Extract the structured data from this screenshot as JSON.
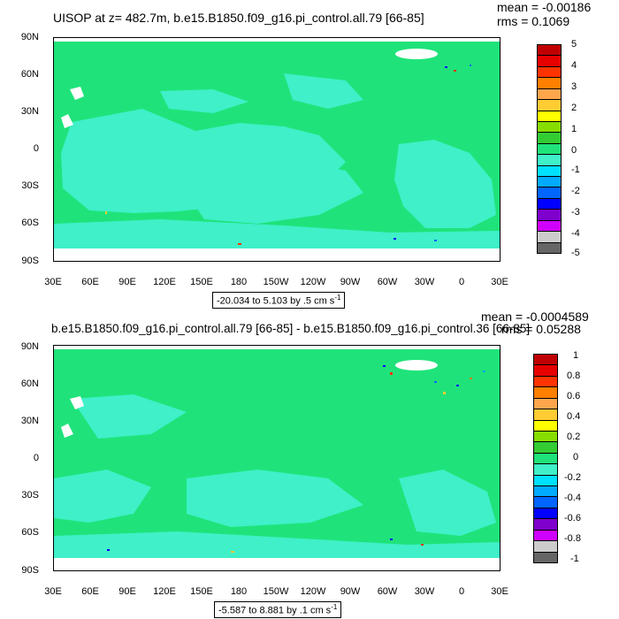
{
  "panels": [
    {
      "title": "UISOP at z= 482.7m, b.e15.B1850.f09_g16.pi_control.all.79 [66-85]",
      "mean": "mean = -0.00186",
      "rms": "rms = 0.1069",
      "range_text": "-20.034 to 5.103 by .5 cm s",
      "range_sup": "-1",
      "colorbar_labels": [
        "5",
        "4",
        "3",
        "2",
        "1",
        "0",
        "-1",
        "-2",
        "-3",
        "-4",
        "-5"
      ]
    },
    {
      "title": "b.e15.B1850.f09_g16.pi_control.all.79 [66-85] - b.e15.B1850.f09_g16.pi_control.36 [66-85]",
      "mean": "mean = -0.0004589",
      "rms": "rms = 0.05288",
      "range_text": "-5.587 to 8.881 by .1 cm s",
      "range_sup": "-1",
      "colorbar_labels": [
        "1",
        "0.8",
        "0.6",
        "0.4",
        "0.2",
        "0",
        "-0.2",
        "-0.4",
        "-0.6",
        "-0.8",
        "-1"
      ]
    }
  ],
  "axes": {
    "y_ticks": [
      "90N",
      "60N",
      "30N",
      "0",
      "30S",
      "60S",
      "90S"
    ],
    "x_ticks": [
      "30E",
      "60E",
      "90E",
      "120E",
      "150E",
      "180",
      "150W",
      "120W",
      "90W",
      "60W",
      "30W",
      "0",
      "30E"
    ]
  },
  "colors": {
    "ocean_green": "#1fe37a",
    "ocean_cyan": "#3ff0c8",
    "land": "#ffffff"
  },
  "colorbar_colors": [
    "#c00000",
    "#e60000",
    "#ff3300",
    "#ff7f00",
    "#ffa64d",
    "#ffcc33",
    "#ffff00",
    "#88dd00",
    "#33cc33",
    "#1fe37a",
    "#3ff0c8",
    "#00e0ff",
    "#00aaff",
    "#0066ff",
    "#0000ff",
    "#7f00cc",
    "#d000ff",
    "#cccccc",
    "#666666"
  ],
  "chart_data": [
    {
      "type": "heatmap",
      "title": "UISOP at z= 482.7m, b.e15.B1850.f09_g16.pi_control.all.79 [66-85]",
      "x_ticks": [
        "30E",
        "60E",
        "90E",
        "120E",
        "150E",
        "180",
        "150W",
        "120W",
        "90W",
        "60W",
        "30W",
        "0",
        "30E"
      ],
      "y_ticks": [
        "90N",
        "60N",
        "30N",
        "0",
        "30S",
        "60S",
        "90S"
      ],
      "colorbar_levels": [
        5,
        4,
        3,
        2,
        1,
        0,
        -1,
        -2,
        -3,
        -4,
        -5
      ],
      "mean": -0.00186,
      "rms": 0.1069,
      "range": [
        -20.034,
        5.103
      ],
      "interval": 0.5,
      "units": "cm s-1"
    },
    {
      "type": "heatmap",
      "title": "b.e15.B1850.f09_g16.pi_control.all.79 [66-85] - b.e15.B1850.f09_g16.pi_control.36 [66-85]",
      "x_ticks": [
        "30E",
        "60E",
        "90E",
        "120E",
        "150E",
        "180",
        "150W",
        "120W",
        "90W",
        "60W",
        "30W",
        "0",
        "30E"
      ],
      "y_ticks": [
        "90N",
        "60N",
        "30N",
        "0",
        "30S",
        "60S",
        "90S"
      ],
      "colorbar_levels": [
        1,
        0.8,
        0.6,
        0.4,
        0.2,
        0,
        -0.2,
        -0.4,
        -0.6,
        -0.8,
        -1
      ],
      "mean": -0.0004589,
      "rms": 0.05288,
      "range": [
        -5.587,
        8.881
      ],
      "interval": 0.1,
      "units": "cm s-1"
    }
  ]
}
